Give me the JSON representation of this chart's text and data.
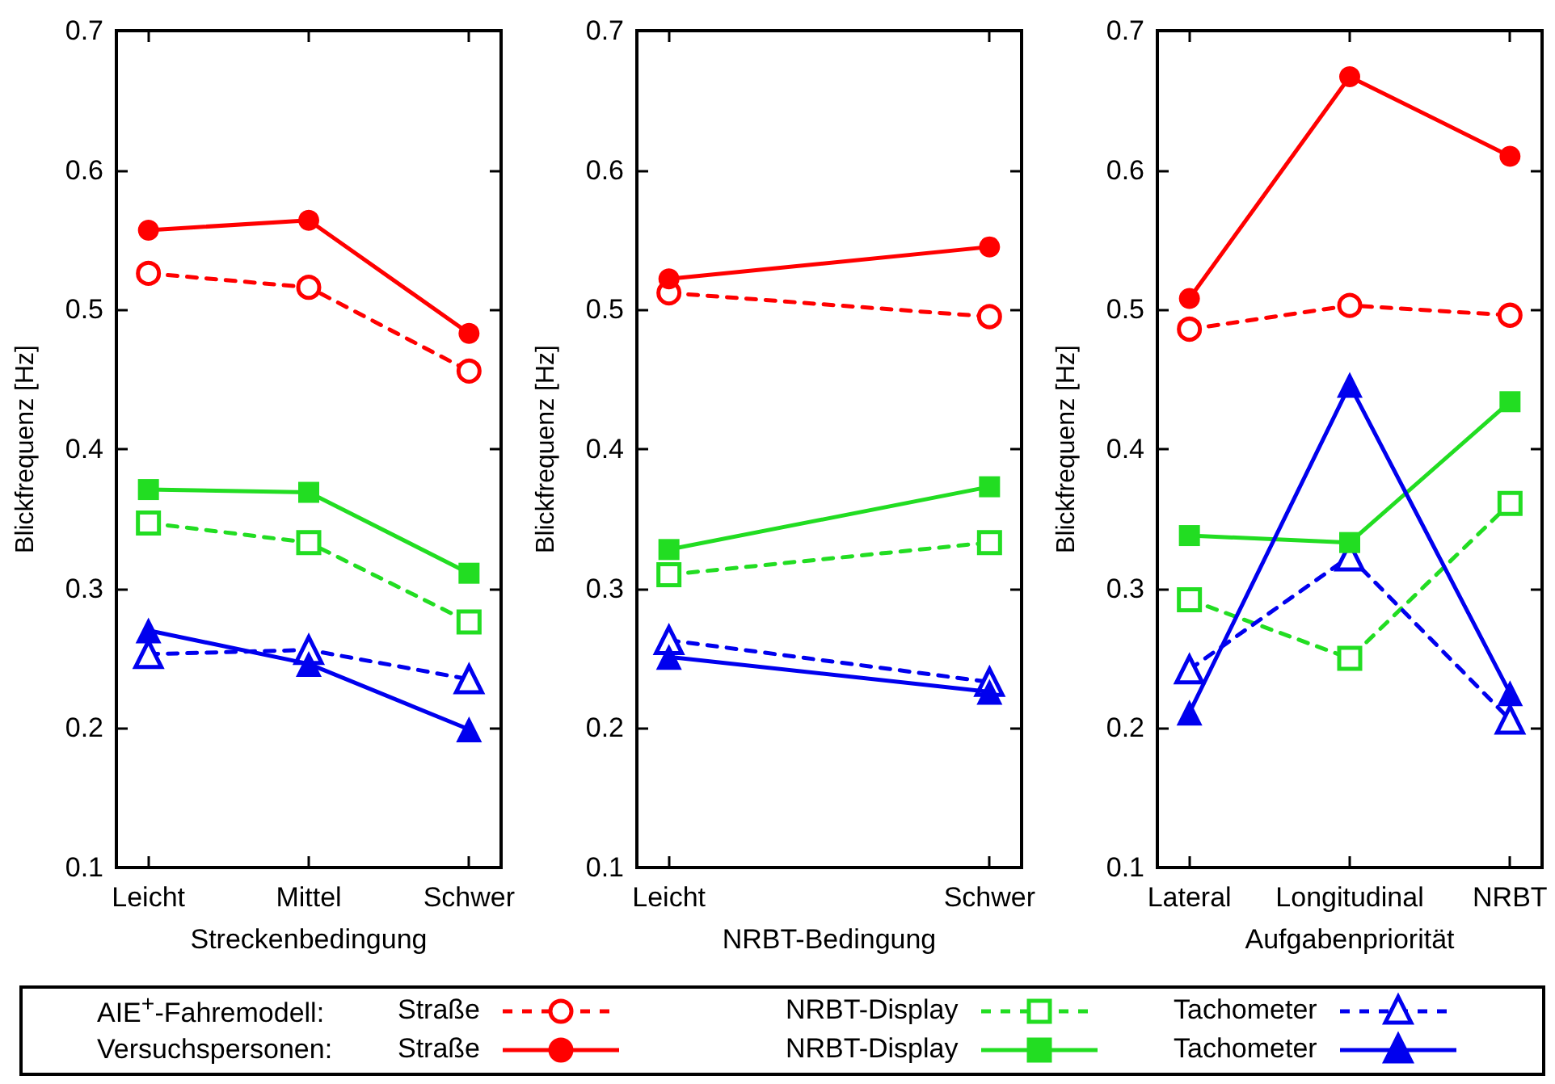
{
  "chart_data": [
    {
      "type": "line",
      "xlabel": "Streckenbedingung",
      "ylabel": "Blickfrequenz [Hz]",
      "categories": [
        "Leicht",
        "Mittel",
        "Schwer"
      ],
      "ylim": [
        0.1,
        0.7
      ],
      "yticks": [
        0.1,
        0.2,
        0.3,
        0.4,
        0.5,
        0.6,
        0.7
      ],
      "grid": false,
      "legend": "bottom",
      "annotations": [
        "AIE$^{+}$-Fahremodell:",
        "Versuchspersonen:"
      ],
      "series": [
        {
          "name": "Straße",
          "color": "#ff0000",
          "marker": "circle",
          "line_style": "dashed",
          "values": [
            0.526,
            0.516,
            0.456
          ]
        },
        {
          "name": "NRBT-Display",
          "color": "#22dd22",
          "marker": "square",
          "line_style": "dashed",
          "values": [
            0.347,
            0.333,
            0.276
          ]
        },
        {
          "name": "Tachometer",
          "color": "#0000ee",
          "marker": "triangle",
          "line_style": "dashed",
          "values": [
            0.253,
            0.256,
            0.235
          ]
        },
        {
          "name": "Straße",
          "color": "#ff0000",
          "marker": "circle",
          "line_style": "solid",
          "values": [
            0.557,
            0.564,
            0.483
          ]
        },
        {
          "name": "NRBT-Display",
          "color": "#22dd22",
          "marker": "square",
          "line_style": "solid",
          "values": [
            0.371,
            0.369,
            0.311
          ]
        },
        {
          "name": "Tachometer",
          "color": "#0000ee",
          "marker": "triangle",
          "line_style": "solid",
          "values": [
            0.27,
            0.246,
            0.199
          ]
        }
      ]
    },
    {
      "type": "line",
      "xlabel": "NRBT-Bedingung",
      "ylabel": "Blickfrequenz [Hz]",
      "categories": [
        "Leicht",
        "Schwer"
      ],
      "ylim": [
        0.1,
        0.7
      ],
      "yticks": [
        0.1,
        0.2,
        0.3,
        0.4,
        0.5,
        0.6,
        0.7
      ],
      "grid": false,
      "series": [
        {
          "color": "#ff0000",
          "marker": "circle",
          "line_style": "dashed",
          "values": [
            0.512,
            0.495
          ]
        },
        {
          "color": "#22dd22",
          "marker": "square",
          "line_style": "dashed",
          "values": [
            0.31,
            0.333
          ]
        },
        {
          "color": "#0000ee",
          "marker": "triangle",
          "line_style": "dashed",
          "values": [
            0.263,
            0.233
          ]
        },
        {
          "color": "#ff0000",
          "marker": "circle",
          "line_style": "solid",
          "values": [
            0.522,
            0.545
          ]
        },
        {
          "color": "#22dd22",
          "marker": "square",
          "line_style": "solid",
          "values": [
            0.328,
            0.373
          ]
        },
        {
          "color": "#0000ee",
          "marker": "triangle",
          "line_style": "solid",
          "values": [
            0.251,
            0.226
          ]
        }
      ]
    },
    {
      "type": "line",
      "xlabel": "Aufgabenpriorität",
      "ylabel": "Blickfrequenz [Hz]",
      "categories": [
        "Lateral",
        "Longitudinal",
        "NRBT"
      ],
      "ylim": [
        0.1,
        0.7
      ],
      "yticks": [
        0.1,
        0.2,
        0.3,
        0.4,
        0.5,
        0.6,
        0.7
      ],
      "grid": false,
      "series": [
        {
          "color": "#ff0000",
          "marker": "circle",
          "line_style": "dashed",
          "values": [
            0.486,
            0.503,
            0.496
          ]
        },
        {
          "color": "#22dd22",
          "marker": "square",
          "line_style": "dashed",
          "values": [
            0.292,
            0.25,
            0.361
          ]
        },
        {
          "color": "#0000ee",
          "marker": "triangle",
          "line_style": "dashed",
          "values": [
            0.242,
            0.323,
            0.206
          ]
        },
        {
          "color": "#ff0000",
          "marker": "circle",
          "line_style": "solid",
          "values": [
            0.508,
            0.667,
            0.61
          ]
        },
        {
          "color": "#22dd22",
          "marker": "square",
          "line_style": "solid",
          "values": [
            0.338,
            0.333,
            0.434
          ]
        },
        {
          "color": "#0000ee",
          "marker": "triangle",
          "line_style": "solid",
          "values": [
            0.211,
            0.446,
            0.225
          ]
        }
      ]
    }
  ]
}
